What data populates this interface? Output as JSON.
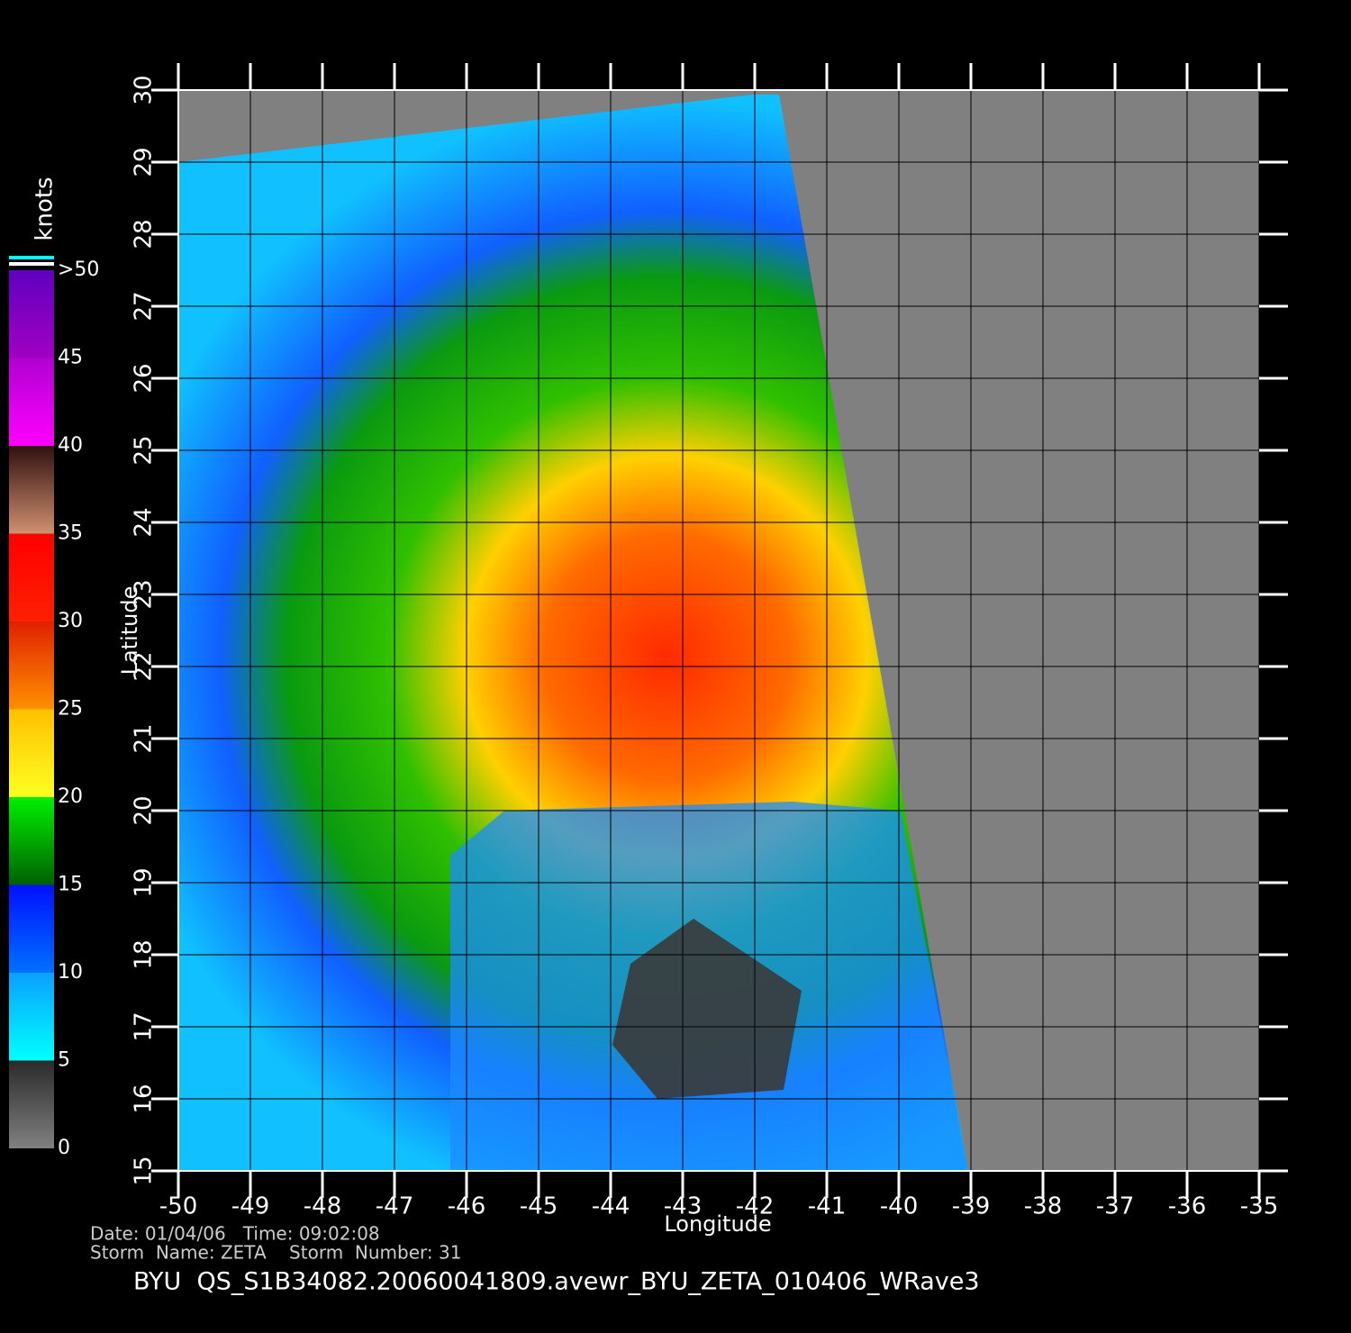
{
  "map": {
    "xlabel": "Longitude",
    "ylabel": "Latitude",
    "xlim": [
      -50,
      -35
    ],
    "ylim": [
      15,
      30
    ],
    "xticks": [
      -50,
      -49,
      -48,
      -47,
      -46,
      -45,
      -44,
      -43,
      -42,
      -41,
      -40,
      -39,
      -38,
      -37,
      -36,
      -35
    ],
    "yticks": [
      15,
      16,
      17,
      18,
      19,
      20,
      21,
      22,
      23,
      24,
      25,
      26,
      27,
      28,
      29,
      30
    ],
    "grid": true
  },
  "colorbar": {
    "title": "knots",
    "ticks": [
      0,
      5,
      10,
      15,
      20,
      25,
      30,
      35,
      40,
      45,
      {
        "value": 50,
        "label": ">50"
      }
    ],
    "colors": [
      [
        "#808080",
        "#2a2a2a"
      ],
      [
        "#00ffff",
        "#0aa0ff"
      ],
      [
        "#0070ff",
        "#0010ff"
      ],
      [
        "#006000",
        "#00f000"
      ],
      [
        "#ffff20",
        "#ffc000"
      ],
      [
        "#ff9000",
        "#e02000"
      ],
      [
        "#ff2000",
        "#ff0000"
      ],
      [
        "#d09070",
        "#301010"
      ],
      [
        "#ff00ff",
        "#b000d0"
      ],
      [
        "#a000c0",
        "#6000c0"
      ]
    ]
  },
  "footer": {
    "line1": "Date: 01/04/06   Time: 09:02:08",
    "line2": "Storm  Name: ZETA    Storm  Number: 31",
    "product": "BYU  QS_S1B34082.20060041809.avewr_BYU_ZETA_010406_WRave3"
  }
}
